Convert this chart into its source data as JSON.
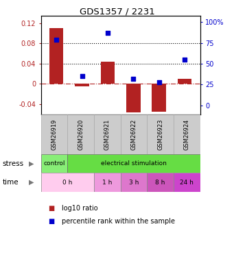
{
  "title": "GDS1357 / 2231",
  "samples": [
    "GSM26919",
    "GSM26920",
    "GSM26921",
    "GSM26922",
    "GSM26923",
    "GSM26924"
  ],
  "log10_ratio": [
    0.11,
    -0.005,
    0.044,
    -0.056,
    -0.055,
    0.01
  ],
  "percentile": [
    79,
    35,
    87,
    32,
    28,
    55
  ],
  "bar_color": "#b22222",
  "dot_color": "#0000cc",
  "ylim_left": [
    -0.06,
    0.135
  ],
  "ylim_right": [
    -10.8,
    108
  ],
  "yticks_left": [
    -0.04,
    0,
    0.04,
    0.08,
    0.12
  ],
  "ytick_labels_left": [
    "-0.04",
    "0",
    "0.04",
    "0.08",
    "0.12"
  ],
  "yticks_right": [
    0,
    25,
    50,
    75,
    100
  ],
  "ytick_labels_right": [
    "0",
    "25",
    "50",
    "75",
    "100%"
  ],
  "hlines": [
    0.04,
    0.08
  ],
  "stress_data": [
    {
      "text": "control",
      "start": 0,
      "end": 1,
      "color": "#88ee77"
    },
    {
      "text": "electrical stimulation",
      "start": 1,
      "end": 6,
      "color": "#66dd44"
    }
  ],
  "time_data": [
    {
      "text": "0 h",
      "start": 0,
      "end": 2,
      "color": "#ffccee"
    },
    {
      "text": "1 h",
      "start": 2,
      "end": 3,
      "color": "#ee99dd"
    },
    {
      "text": "3 h",
      "start": 3,
      "end": 4,
      "color": "#dd77cc"
    },
    {
      "text": "8 h",
      "start": 4,
      "end": 5,
      "color": "#cc55bb"
    },
    {
      "text": "24 h",
      "start": 5,
      "end": 6,
      "color": "#cc44cc"
    }
  ],
  "sample_box_color": "#cccccc",
  "sample_box_edge": "#aaaaaa",
  "legend_bar_label": "log10 ratio",
  "legend_dot_label": "percentile rank within the sample",
  "bg_color": "#ffffff"
}
